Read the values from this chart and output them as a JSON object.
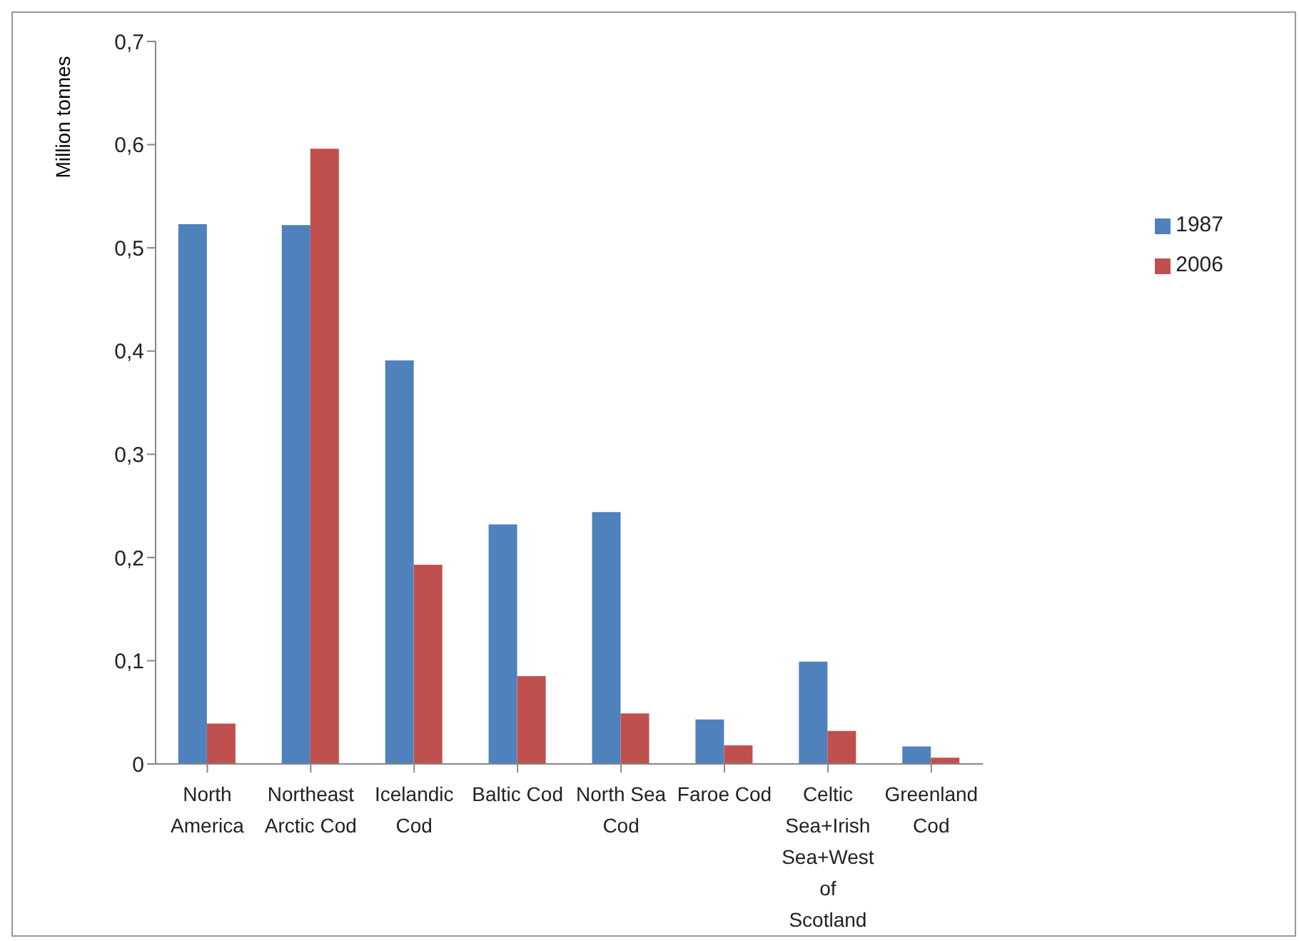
{
  "chart_data": {
    "type": "bar",
    "ylabel": "Million tonnes",
    "categories": [
      "North America",
      "Northeast Arctic Cod",
      "Icelandic Cod",
      "Baltic Cod",
      "North Sea Cod",
      "Faroe Cod",
      "Celtic Sea+Irish Sea+West of Scotland",
      "Greenland Cod"
    ],
    "series": [
      {
        "name": "1987",
        "color": "#4f81bd",
        "values": [
          0.523,
          0.522,
          0.391,
          0.232,
          0.244,
          0.043,
          0.099,
          0.017
        ]
      },
      {
        "name": "2006",
        "color": "#c0504d",
        "values": [
          0.039,
          0.596,
          0.193,
          0.085,
          0.049,
          0.018,
          0.032,
          0.006
        ]
      }
    ],
    "ylim": [
      0,
      0.7
    ],
    "yticks": [
      0,
      {
        "value": 0.1,
        "label": "0,1"
      },
      {
        "value": 0.2,
        "label": "0,2"
      },
      {
        "value": 0.3,
        "label": "0,3"
      },
      {
        "value": 0.4,
        "label": "0,4"
      },
      {
        "value": 0.5,
        "label": "0,5"
      },
      {
        "value": 0.6,
        "label": "0,6"
      },
      {
        "value": 0.7,
        "label": "0,7"
      }
    ],
    "grid": false,
    "legend": "top right"
  }
}
